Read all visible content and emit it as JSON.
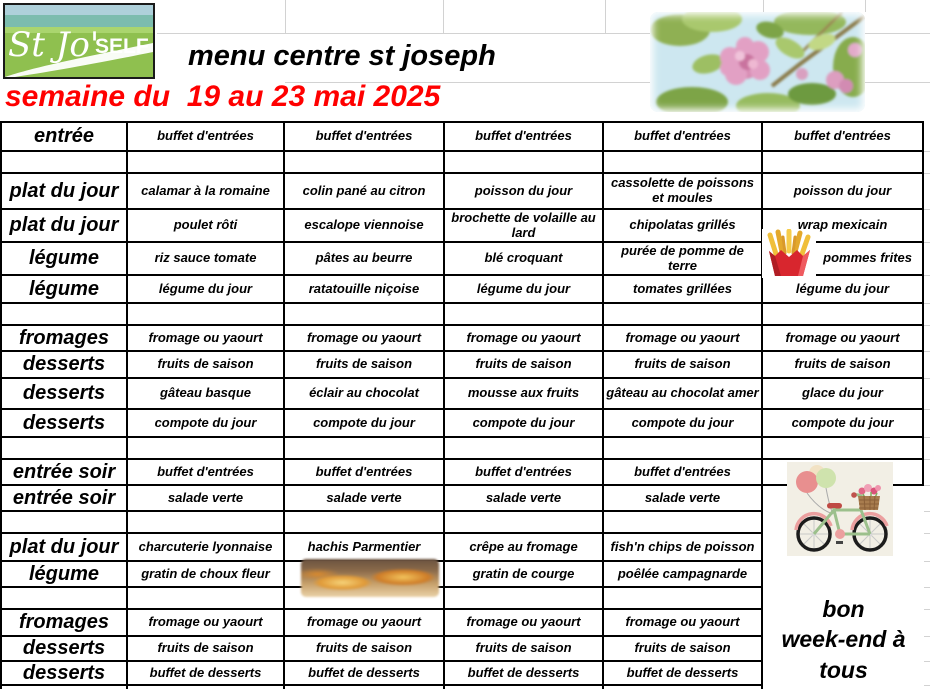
{
  "header": {
    "logo": {
      "line1": "St Jo'",
      "line2": "SELF"
    },
    "title": "menu centre st joseph",
    "subtitle": "semaine du  19 au 23 mai 2025",
    "subtitle_color": "#ff0000"
  },
  "images": {
    "flower": "pink-spring-flower-photo",
    "fries": "french-fries",
    "gratin": "gratin-dish-photo",
    "bike": "bicycle-with-balloons-and-flower-basket"
  },
  "table": {
    "rows": [
      {
        "label": "entrée",
        "cells": [
          "buffet d'entrées",
          "buffet d'entrées",
          "buffet d'entrées",
          "buffet d'entrées",
          "buffet d'entrées"
        ]
      },
      {
        "label": "",
        "cells": [
          "",
          "",
          "",
          "",
          ""
        ]
      },
      {
        "label": "plat du jour",
        "cells": [
          "calamar à la romaine",
          "colin pané au citron",
          "poisson du jour",
          "cassolette de poissons et moules",
          "poisson du jour"
        ]
      },
      {
        "label": "plat du jour",
        "cells": [
          "poulet rôti",
          "escalope viennoise",
          "brochette de volaille au lard",
          "chipolatas grillés",
          "wrap mexicain"
        ]
      },
      {
        "label": "légume",
        "cells": [
          "riz sauce tomate",
          "pâtes au beurre",
          "blé croquant",
          "purée de pomme de terre",
          "pommes  frites"
        ]
      },
      {
        "label": "légume",
        "cells": [
          "légume du jour",
          "ratatouille niçoise",
          "légume du jour",
          "tomates grillées",
          "légume du jour"
        ]
      },
      {
        "label": "",
        "cells": [
          "",
          "",
          "",
          "",
          ""
        ]
      },
      {
        "label": "fromages",
        "cells": [
          "fromage ou yaourt",
          "fromage ou yaourt",
          "fromage ou yaourt",
          "fromage ou yaourt",
          "fromage ou yaourt"
        ]
      },
      {
        "label": "desserts",
        "cells": [
          "fruits de saison",
          "fruits de saison",
          "fruits de saison",
          "fruits de saison",
          "fruits de saison"
        ]
      },
      {
        "label": "desserts",
        "cells": [
          "gâteau basque",
          "éclair au chocolat",
          "mousse aux fruits",
          "gâteau au chocolat amer",
          "glace du jour"
        ]
      },
      {
        "label": "desserts",
        "cells": [
          "compote du jour",
          "compote du jour",
          "compote du jour",
          "compote du jour",
          "compote du jour"
        ]
      },
      {
        "label": "",
        "cells": [
          "",
          "",
          "",
          "",
          ""
        ]
      },
      {
        "label": "entrée soir",
        "cells": [
          "buffet d'entrées",
          "buffet d'entrées",
          "buffet d'entrées",
          "buffet d'entrées",
          ""
        ]
      },
      {
        "label": "entrée soir",
        "cells": [
          "salade verte",
          "salade verte",
          "salade verte",
          "salade verte",
          ""
        ]
      },
      {
        "label": "",
        "cells": [
          "",
          "",
          "",
          "",
          ""
        ]
      },
      {
        "label": "plat du jour",
        "cells": [
          "charcuterie lyonnaise",
          "hachis Parmentier",
          "crêpe au fromage",
          "fish'n chips de poisson",
          ""
        ]
      },
      {
        "label": "légume",
        "cells": [
          "gratin de choux fleur",
          "",
          "gratin de courge",
          "poêlée campagnarde",
          ""
        ]
      },
      {
        "label": "",
        "cells": [
          "",
          "",
          "",
          "",
          ""
        ]
      },
      {
        "label": "fromages",
        "cells": [
          "fromage ou yaourt",
          "fromage ou yaourt",
          "fromage ou yaourt",
          "fromage ou yaourt",
          ""
        ]
      },
      {
        "label": "desserts",
        "cells": [
          "fruits de saison",
          "fruits de saison",
          "fruits de saison",
          "fruits de saison",
          ""
        ]
      },
      {
        "label": "desserts",
        "cells": [
          "buffet de desserts",
          "buffet de desserts",
          "buffet de desserts",
          "buffet de desserts",
          ""
        ]
      },
      {
        "label": "",
        "cells": [
          "",
          "",
          "",
          "",
          ""
        ]
      }
    ]
  },
  "footer_note": {
    "text": "bon week-end à tous",
    "lines": [
      "bon",
      "week-end à",
      "tous"
    ]
  }
}
